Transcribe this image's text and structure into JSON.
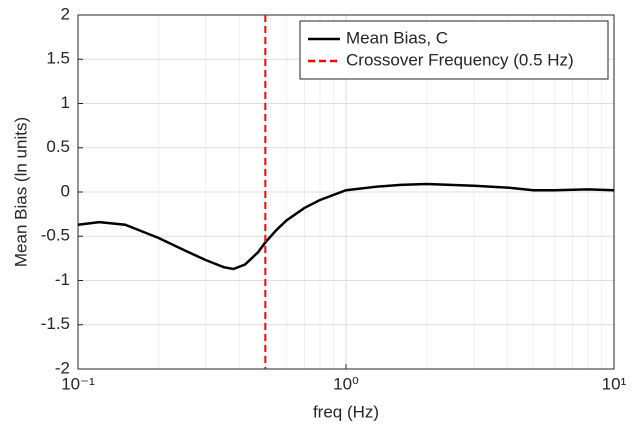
{
  "chart_data": {
    "type": "line",
    "x_label": "freq (Hz)",
    "y_label": "Mean Bias (ln units)",
    "x": [
      0.1,
      0.12,
      0.15,
      0.2,
      0.25,
      0.3,
      0.35,
      0.38,
      0.42,
      0.47,
      0.5,
      0.55,
      0.6,
      0.7,
      0.8,
      1.0,
      1.3,
      1.6,
      2.0,
      3.0,
      4.0,
      5.0,
      6.0,
      8.0,
      10.0
    ],
    "series": [
      {
        "name": "Mean Bias, C",
        "color": "#000000",
        "values": [
          -0.37,
          -0.34,
          -0.37,
          -0.52,
          -0.66,
          -0.77,
          -0.85,
          -0.87,
          -0.82,
          -0.68,
          -0.57,
          -0.43,
          -0.32,
          -0.18,
          -0.09,
          0.02,
          0.06,
          0.08,
          0.09,
          0.07,
          0.05,
          0.02,
          0.02,
          0.03,
          0.02
        ]
      }
    ],
    "vlines": [
      {
        "name": "Crossover Frequency (0.5 Hz)",
        "x": 0.5,
        "color": "#ff0000",
        "dashed": true
      }
    ],
    "xscale": "log",
    "xlim": [
      0.1,
      10
    ],
    "xticks": [
      {
        "value": 0.1,
        "label": "10⁻¹"
      },
      {
        "value": 1,
        "label": "10⁰"
      },
      {
        "value": 10,
        "label": "10¹"
      }
    ],
    "xminor": [
      0.2,
      0.3,
      0.4,
      0.5,
      0.6,
      0.7,
      0.8,
      0.9,
      2,
      3,
      4,
      5,
      6,
      7,
      8,
      9
    ],
    "ylim": [
      -2,
      2
    ],
    "yticks": [
      -2,
      -1.5,
      -1,
      -0.5,
      0,
      0.5,
      1,
      1.5,
      2
    ],
    "grid": true,
    "legend": "top-right"
  }
}
